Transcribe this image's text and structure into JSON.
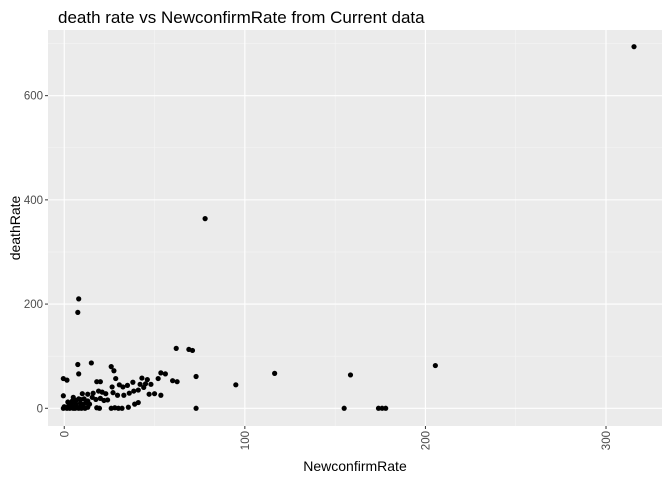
{
  "chart_data": {
    "type": "scatter",
    "title": "death rate vs NewconfirmRate from Current data",
    "xlabel": "NewconfirmRate",
    "ylabel": "deathRate",
    "xlim": [
      -9,
      331
    ],
    "ylim": [
      -34,
      726
    ],
    "x_ticks": [
      0,
      100,
      200,
      300
    ],
    "x_tick_labels": [
      "0",
      "100",
      "200",
      "300"
    ],
    "y_ticks": [
      0,
      200,
      400,
      600
    ],
    "y_tick_labels": [
      "0",
      "200",
      "400",
      "600"
    ],
    "grid": true,
    "x_tick_label_rotation": "vertical",
    "colors": {
      "panel": "#ebebeb",
      "grid_major": "#ffffff",
      "grid_minor": "#f5f5f5",
      "point": "#000000",
      "tick": "#333333"
    },
    "series": [
      {
        "points": [
          [
            315.5,
            694
          ],
          [
            78,
            364
          ],
          [
            8,
            210
          ],
          [
            7.5,
            184
          ],
          [
            205.5,
            82
          ],
          [
            62,
            115
          ],
          [
            69,
            113
          ],
          [
            71,
            111
          ],
          [
            158.5,
            64
          ],
          [
            116.5,
            67
          ],
          [
            95,
            45
          ],
          [
            73,
            61
          ],
          [
            155,
            0
          ],
          [
            174,
            0
          ],
          [
            176,
            0
          ],
          [
            178,
            0
          ],
          [
            73,
            0
          ],
          [
            -0.5,
            57
          ],
          [
            1.5,
            54
          ],
          [
            -0.5,
            24
          ],
          [
            7.5,
            84
          ],
          [
            15,
            87
          ],
          [
            8,
            66
          ],
          [
            26,
            80
          ],
          [
            27.5,
            72
          ],
          [
            28.5,
            57
          ],
          [
            53.5,
            68
          ],
          [
            56,
            66
          ],
          [
            52,
            57
          ],
          [
            60,
            53
          ],
          [
            62.5,
            51
          ],
          [
            43,
            58
          ],
          [
            46,
            55
          ],
          [
            38,
            50
          ],
          [
            42,
            46
          ],
          [
            45,
            47
          ],
          [
            48,
            46
          ],
          [
            18,
            51
          ],
          [
            20,
            51
          ],
          [
            26.5,
            41
          ],
          [
            30.5,
            45
          ],
          [
            32.5,
            41
          ],
          [
            35,
            44
          ],
          [
            10,
            28
          ],
          [
            13,
            27
          ],
          [
            16,
            29
          ],
          [
            19,
            33
          ],
          [
            21,
            31
          ],
          [
            23,
            28
          ],
          [
            27,
            30
          ],
          [
            29.5,
            25
          ],
          [
            33,
            25
          ],
          [
            36,
            29
          ],
          [
            38.5,
            33
          ],
          [
            41,
            35
          ],
          [
            44,
            40
          ],
          [
            47,
            27
          ],
          [
            50,
            28
          ],
          [
            53.5,
            25
          ],
          [
            5,
            21
          ],
          [
            8,
            18
          ],
          [
            11,
            18
          ],
          [
            13,
            14
          ],
          [
            15.5,
            21
          ],
          [
            17.5,
            17
          ],
          [
            20,
            19
          ],
          [
            22,
            15
          ],
          [
            24,
            16
          ],
          [
            2,
            12
          ],
          [
            3.5,
            9
          ],
          [
            5.5,
            12
          ],
          [
            6.5,
            8
          ],
          [
            9,
            10
          ],
          [
            10.5,
            7
          ],
          [
            12,
            11
          ],
          [
            14,
            8
          ],
          [
            0,
            3
          ],
          [
            1,
            1
          ],
          [
            2.5,
            5
          ],
          [
            3,
            0
          ],
          [
            4.5,
            3
          ],
          [
            5,
            0
          ],
          [
            6,
            4
          ],
          [
            7,
            1
          ],
          [
            8.5,
            2
          ],
          [
            9.5,
            0
          ],
          [
            10.5,
            3
          ],
          [
            11.5,
            0
          ],
          [
            13,
            2
          ],
          [
            -0.5,
            0
          ],
          [
            1.5,
            0
          ],
          [
            4,
            1
          ],
          [
            6,
            0
          ],
          [
            8,
            0
          ],
          [
            10,
            1
          ],
          [
            18,
            1
          ],
          [
            19.5,
            0
          ],
          [
            26,
            0
          ],
          [
            28,
            1
          ],
          [
            30,
            0
          ],
          [
            32,
            0
          ],
          [
            35.5,
            2
          ],
          [
            39,
            8
          ],
          [
            41,
            11
          ],
          [
            3,
            6
          ],
          [
            4.5,
            14
          ],
          [
            6.5,
            15
          ],
          [
            9,
            17
          ]
        ]
      }
    ]
  }
}
